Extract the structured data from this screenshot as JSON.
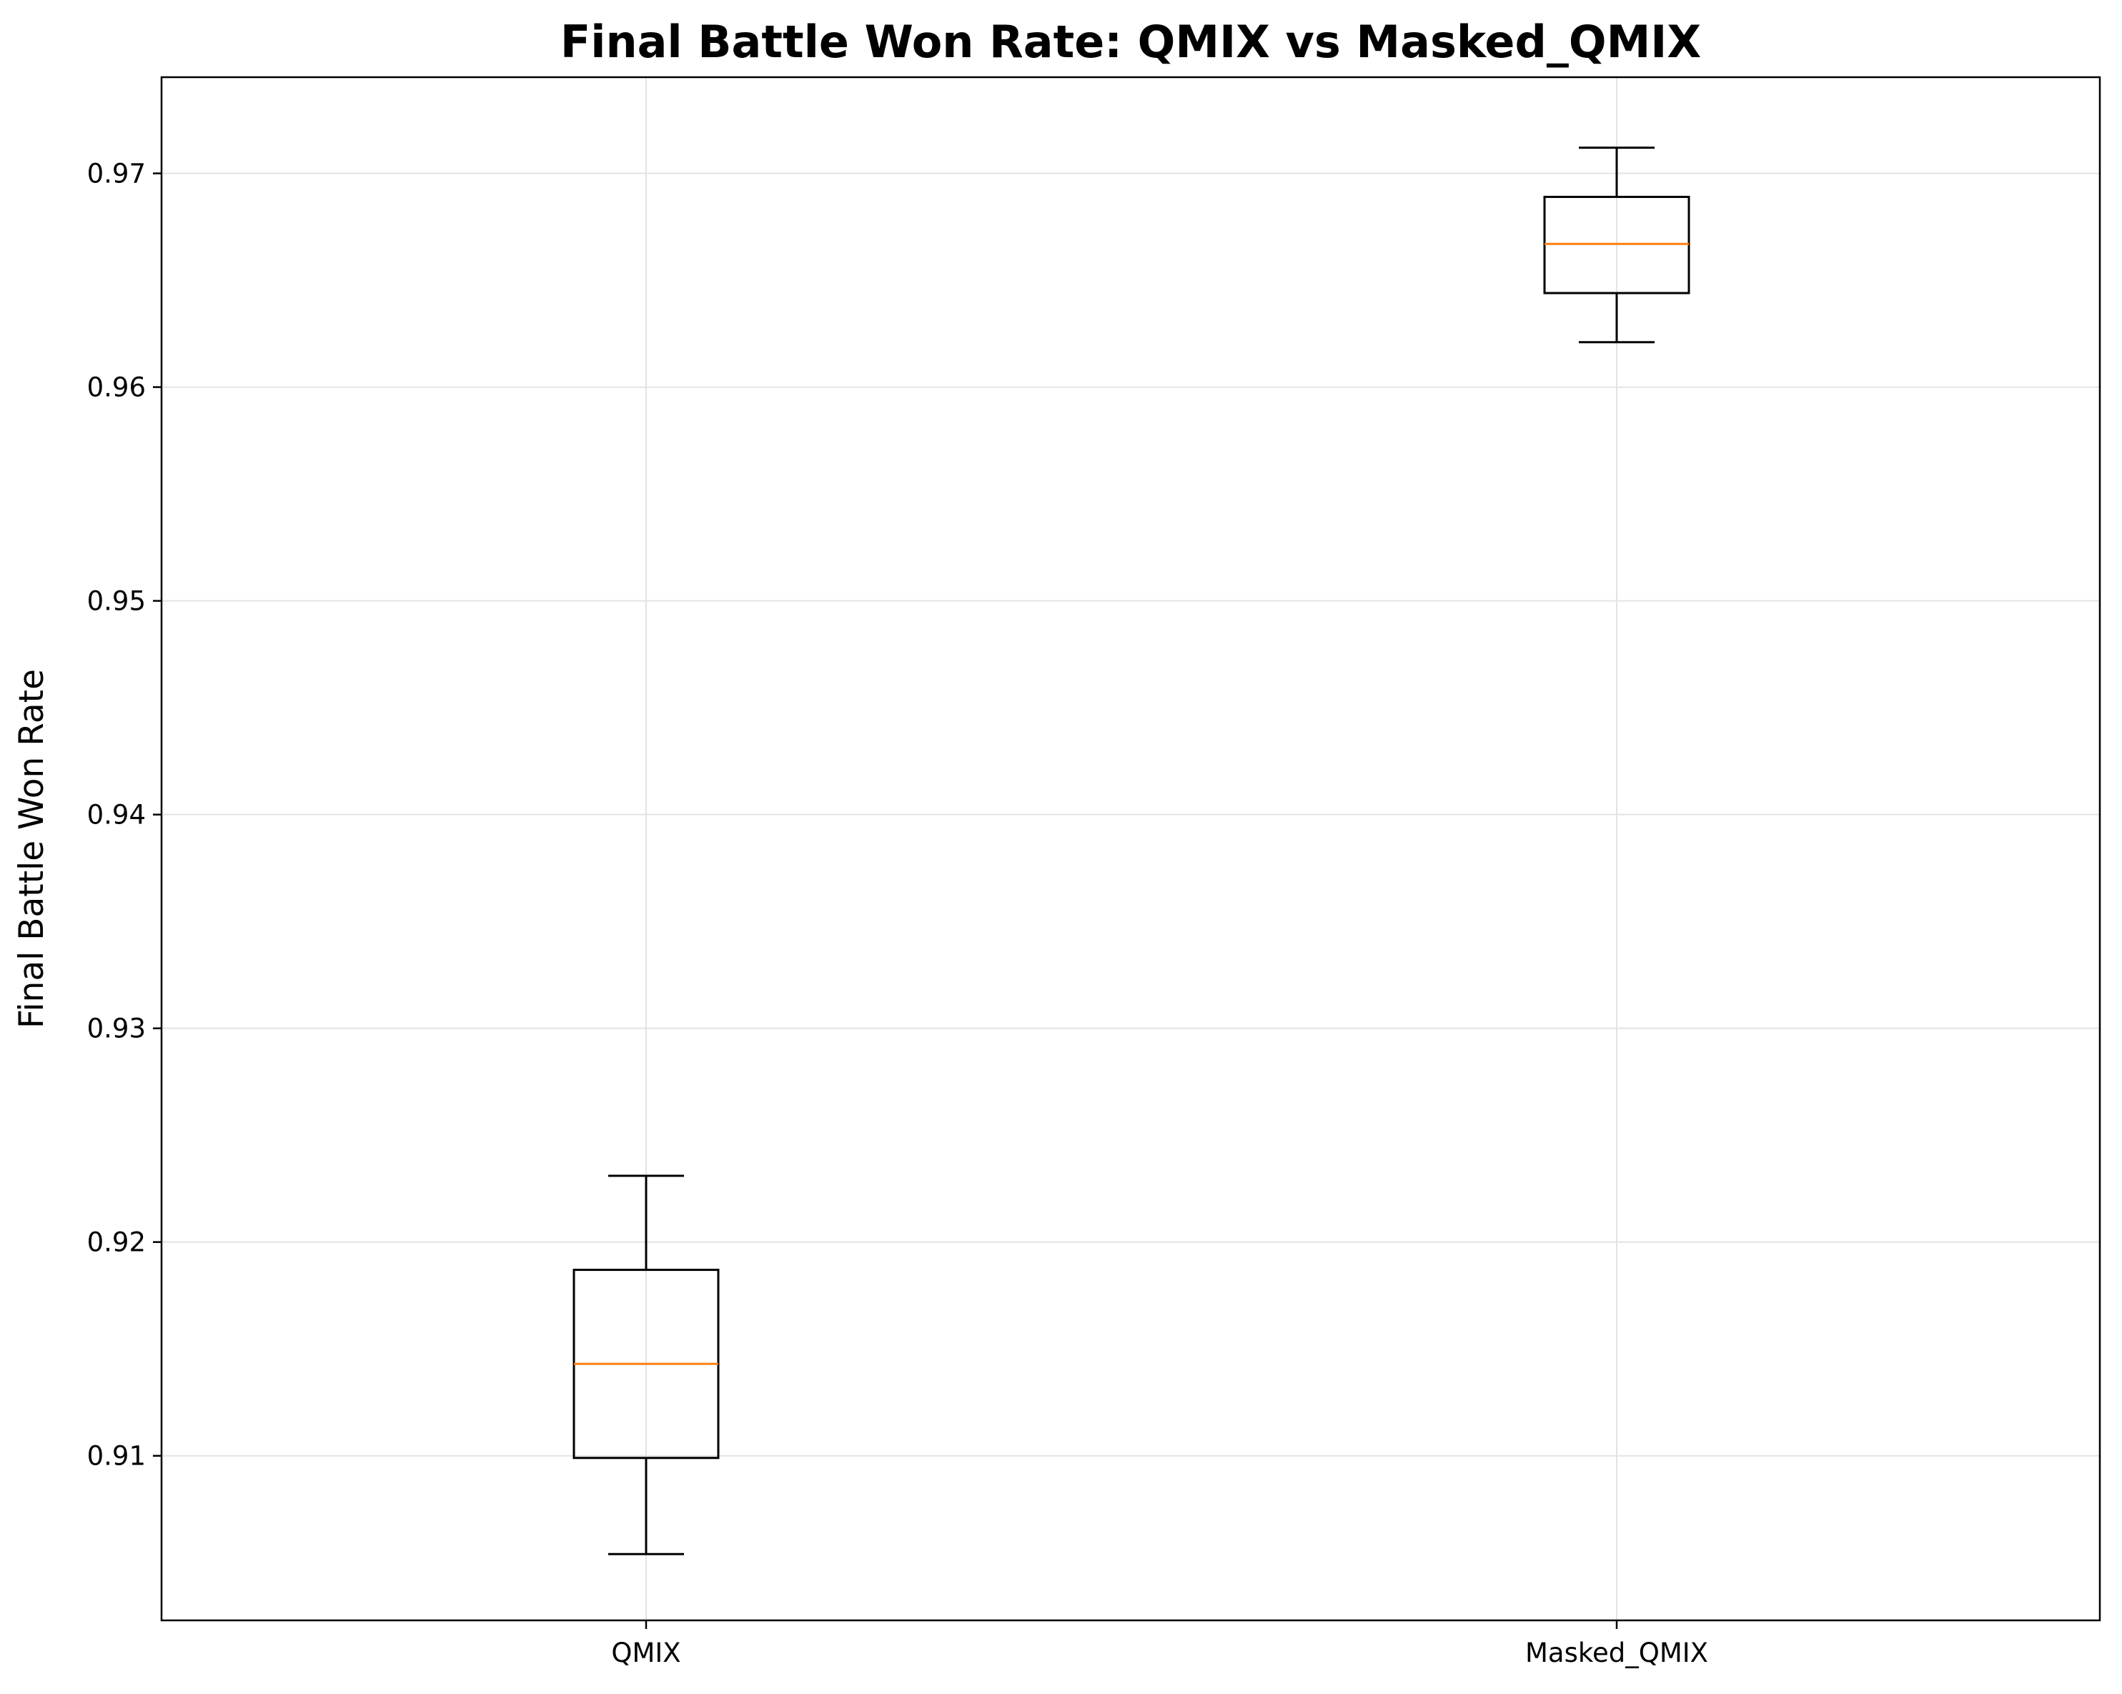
{
  "chart_data": {
    "type": "box",
    "title": "Final Battle Won Rate: QMIX vs Masked_QMIX",
    "xlabel": "",
    "ylabel": "Final Battle Won Rate",
    "categories": [
      "QMIX",
      "Masked_QMIX"
    ],
    "boxes": [
      {
        "label": "QMIX",
        "whisker_low": 0.9054,
        "q1": 0.9099,
        "median": 0.9143,
        "q3": 0.9187,
        "whisker_high": 0.9231
      },
      {
        "label": "Masked_QMIX",
        "whisker_low": 0.9621,
        "q1": 0.9644,
        "median": 0.9667,
        "q3": 0.9689,
        "whisker_high": 0.9712
      }
    ],
    "yticks": [
      0.91,
      0.92,
      0.93,
      0.94,
      0.95,
      0.96,
      0.97
    ],
    "ytick_labels": [
      "0.91",
      "0.92",
      "0.93",
      "0.94",
      "0.95",
      "0.96",
      "0.97"
    ],
    "ylim": [
      0.9023,
      0.9745
    ],
    "grid": true,
    "legend": false,
    "colors": {
      "box": "#000000",
      "median": "#ff7f0e",
      "grid": "#e3e3e3"
    }
  }
}
